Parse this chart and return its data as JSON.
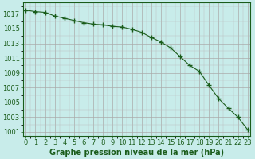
{
  "x": [
    0,
    1,
    2,
    3,
    4,
    5,
    6,
    7,
    8,
    9,
    10,
    11,
    12,
    13,
    14,
    15,
    16,
    17,
    18,
    19,
    20,
    21,
    22,
    23
  ],
  "y": [
    1017.5,
    1017.3,
    1017.2,
    1016.7,
    1016.4,
    1016.1,
    1015.8,
    1015.6,
    1015.5,
    1015.3,
    1015.2,
    1014.9,
    1014.5,
    1013.8,
    1013.2,
    1012.4,
    1011.2,
    1010.0,
    1009.2,
    1007.3,
    1005.5,
    1004.2,
    1003.0,
    1001.3
  ],
  "line_color": "#1a5c1a",
  "marker_color": "#1a5c1a",
  "bg_color": "#c8ecea",
  "grid_color_major": "#aaaaaa",
  "grid_color_minor": "#cccccc",
  "xlabel": "Graphe pression niveau de la mer (hPa)",
  "xlim": [
    -0.3,
    23.3
  ],
  "ylim": [
    1000.5,
    1018.5
  ],
  "yticks": [
    1001,
    1003,
    1005,
    1007,
    1009,
    1011,
    1013,
    1015,
    1017
  ],
  "xticks": [
    0,
    1,
    2,
    3,
    4,
    5,
    6,
    7,
    8,
    9,
    10,
    11,
    12,
    13,
    14,
    15,
    16,
    17,
    18,
    19,
    20,
    21,
    22,
    23
  ],
  "tick_fontsize": 6,
  "label_fontsize": 7,
  "figsize": [
    3.2,
    2.0
  ],
  "dpi": 100
}
